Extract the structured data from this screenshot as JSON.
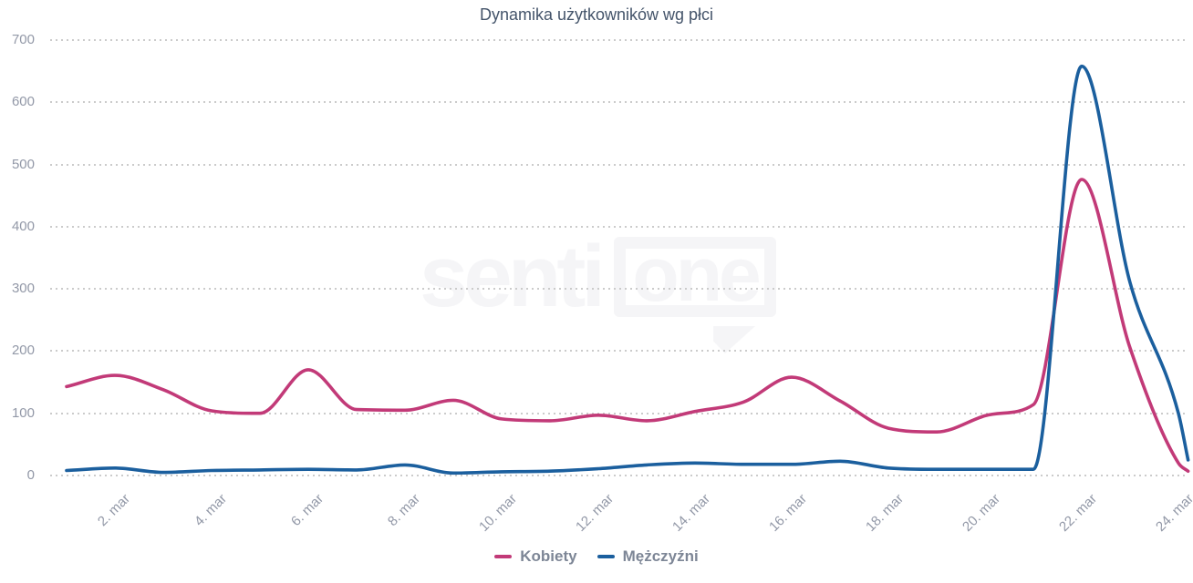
{
  "title": "Dynamika użytkowników wg płci",
  "watermark": {
    "text_left": "senti",
    "text_right": "one"
  },
  "legend": {
    "items": [
      {
        "label": "Kobiety",
        "color": "#c23a78"
      },
      {
        "label": "Mężczyźni",
        "color": "#1b5f9e"
      }
    ]
  },
  "colors": {
    "kobiety": "#c23a78",
    "mezczyzni": "#1b5f9e",
    "title_text": "#44546a",
    "axis_text": "#9298a7",
    "legend_text": "#7d8696",
    "grid_dots": "#cbcbcb",
    "watermark": "#f5f5f7"
  },
  "chart_data": {
    "type": "line",
    "title": "Dynamika użytkowników wg płci",
    "xlabel": "",
    "ylabel": "",
    "grid": "horizontal-dotted",
    "legend_position": "bottom",
    "ylim": [
      0,
      700
    ],
    "y_ticks": [
      0,
      100,
      200,
      300,
      400,
      500,
      600,
      700
    ],
    "x_days": [
      1,
      2,
      3,
      4,
      5,
      6,
      7,
      8,
      9,
      10,
      11,
      12,
      13,
      14,
      15,
      16,
      17,
      18,
      19,
      20,
      21,
      22,
      23,
      24
    ],
    "x_tick_days": [
      2,
      4,
      6,
      8,
      10,
      12,
      14,
      16,
      18,
      20,
      22,
      24
    ],
    "x_tick_labels": [
      "2. mar",
      "4. mar",
      "6. mar",
      "8. mar",
      "10. mar",
      "12. mar",
      "14. mar",
      "16. mar",
      "18. mar",
      "20. mar",
      "22. mar",
      "24. mar"
    ],
    "series": [
      {
        "name": "Kobiety",
        "color": "#c23a78",
        "values": [
          143,
          161,
          138,
          104,
          100,
          170,
          106,
          105,
          121,
          91,
          88,
          97,
          88,
          103,
          118,
          158,
          120,
          76,
          70,
          96,
          114,
          476,
          205,
          20
        ]
      },
      {
        "name": "Mężczyźni",
        "color": "#1b5f9e",
        "values": [
          8,
          12,
          5,
          8,
          9,
          10,
          9,
          17,
          4,
          6,
          7,
          11,
          17,
          20,
          18,
          18,
          23,
          12,
          10,
          10,
          10,
          658,
          310,
          100
        ]
      }
    ],
    "partial_tail": {
      "x_day": 24.2,
      "values": {
        "Kobiety": 7,
        "Mężczyźni": 25
      }
    }
  }
}
